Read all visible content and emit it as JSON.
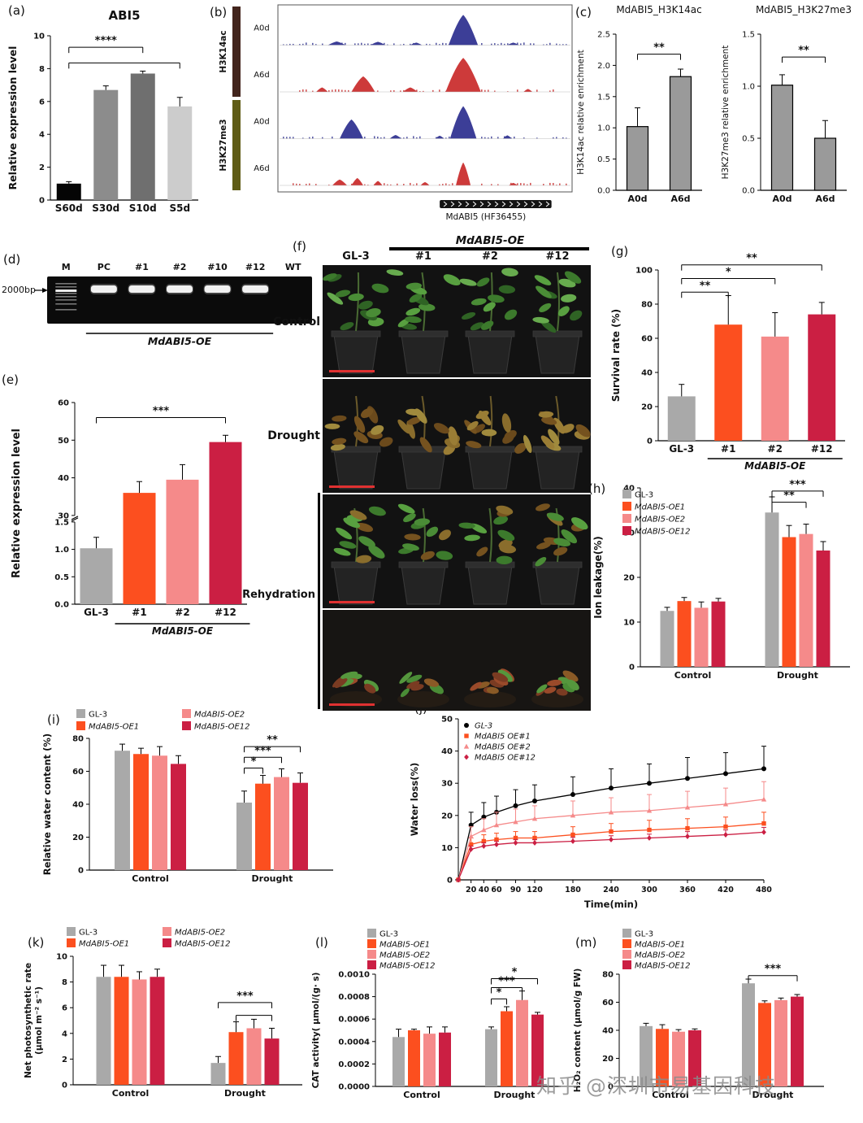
{
  "panel_labels": {
    "a": "(a)",
    "b": "(b)",
    "c": "(c)",
    "d": "(d)",
    "e": "(e)",
    "f": "(f)",
    "g": "(g)",
    "h": "(h)",
    "i": "(i)",
    "j": "(j)",
    "k": "(k)",
    "l": "(l)",
    "m": "(m)"
  },
  "watermark": {
    "text": "知乎 @深圳市易基因科技"
  },
  "panel_d": {
    "lanes": [
      "M",
      "PC",
      "#1",
      "#2",
      "#10",
      "#12",
      "WT"
    ],
    "marker_label": "2000bp",
    "construct_label": "MdABI5-OE"
  },
  "panel_f": {
    "header": "MdABI5-OE",
    "columns": [
      "GL-3",
      "#1",
      "#2",
      "#12"
    ],
    "row_labels": [
      "Control",
      "Drought",
      "Rehydration"
    ]
  },
  "chart_data": [
    {
      "id": "a",
      "type": "bar",
      "title": "ABI5",
      "ylabel": "Relative expression level",
      "ylim": [
        0,
        10
      ],
      "yticks": [
        0,
        2,
        4,
        6,
        8,
        10
      ],
      "categories": [
        "S60d",
        "S30d",
        "S10d",
        "S5d"
      ],
      "values": [
        1.0,
        6.7,
        7.7,
        5.7
      ],
      "errors": [
        0.12,
        0.25,
        0.15,
        0.55
      ],
      "bar_colors": [
        "#050505",
        "#8c8c8c",
        "#6f6f6f",
        "#cccccc"
      ],
      "sig": [
        {
          "g1": 0,
          "g2": 2,
          "y": 9.3,
          "label": "****"
        },
        {
          "g1": 0,
          "g2": 3,
          "y": 8.35,
          "label": ""
        }
      ]
    },
    {
      "id": "b",
      "type": "tracks",
      "groups": [
        {
          "name": "H3K14ac",
          "color": "#43251d",
          "tracks": [
            {
              "label": "A0d",
              "color": "#3c3e97",
              "peaks": [
                {
                  "c": 20,
                  "w": 6,
                  "h": 10
                },
                {
                  "c": 34,
                  "w": 5,
                  "h": 9
                },
                {
                  "c": 47,
                  "w": 4,
                  "h": 7
                },
                {
                  "c": 63,
                  "w": 10,
                  "h": 82
                },
                {
                  "c": 80,
                  "w": 4,
                  "h": 7
                }
              ]
            },
            {
              "label": "A6d",
              "color": "#cd3a3a",
              "peaks": [
                {
                  "c": 15,
                  "w": 4,
                  "h": 12
                },
                {
                  "c": 29,
                  "w": 8,
                  "h": 42
                },
                {
                  "c": 45,
                  "w": 5,
                  "h": 12
                },
                {
                  "c": 63,
                  "w": 12,
                  "h": 92
                },
                {
                  "c": 85,
                  "w": 3,
                  "h": 8
                }
              ]
            }
          ]
        },
        {
          "name": "H3K27me3",
          "color": "#5f5c16",
          "tracks": [
            {
              "label": "A0d",
              "color": "#3c3e97",
              "peaks": [
                {
                  "c": 25,
                  "w": 8,
                  "h": 52
                },
                {
                  "c": 40,
                  "w": 4,
                  "h": 10
                },
                {
                  "c": 55,
                  "w": 3,
                  "h": 8
                },
                {
                  "c": 63,
                  "w": 9,
                  "h": 88
                },
                {
                  "c": 78,
                  "w": 3,
                  "h": 9
                }
              ]
            },
            {
              "label": "A6d",
              "color": "#cd3a3a",
              "peaks": [
                {
                  "c": 21,
                  "w": 5,
                  "h": 16
                },
                {
                  "c": 27,
                  "w": 4,
                  "h": 20
                },
                {
                  "c": 34,
                  "w": 3,
                  "h": 12
                },
                {
                  "c": 50,
                  "w": 3,
                  "h": 9
                },
                {
                  "c": 63,
                  "w": 5,
                  "h": 62
                },
                {
                  "c": 80,
                  "w": 3,
                  "h": 7
                }
              ]
            }
          ]
        }
      ],
      "gene": {
        "label": "MdABI5 (HF36455)",
        "start": 55,
        "end": 93
      }
    },
    {
      "id": "c1",
      "type": "bar",
      "title": "MdABI5_H3K14ac",
      "ylabel": "H3K14ac relative enrichment",
      "ylim": [
        0,
        2.5
      ],
      "yticks": [
        0,
        0.5,
        1,
        1.5,
        2,
        2.5
      ],
      "ytick_decimals": 1,
      "categories": [
        "A0d",
        "A6d"
      ],
      "values": [
        1.02,
        1.82
      ],
      "errors": [
        0.3,
        0.12
      ],
      "bar_colors": [
        "#9a9a9a",
        "#9a9a9a"
      ],
      "bar_stroke": "#000",
      "sig": [
        {
          "g1": 0,
          "g2": 1,
          "y": 2.18,
          "label": "**"
        }
      ]
    },
    {
      "id": "c2",
      "type": "bar",
      "title": "MdABI5_H3K27me3",
      "ylabel": "H3K27me3 relative enrichment",
      "ylim": [
        0,
        1.5
      ],
      "yticks": [
        0,
        0.5,
        1,
        1.5
      ],
      "ytick_decimals": 1,
      "categories": [
        "A0d",
        "A6d"
      ],
      "values": [
        1.01,
        0.5
      ],
      "errors": [
        0.1,
        0.17
      ],
      "bar_colors": [
        "#9a9a9a",
        "#9a9a9a"
      ],
      "bar_stroke": "#000",
      "sig": [
        {
          "g1": 0,
          "g2": 1,
          "y": 1.28,
          "label": "**"
        }
      ]
    },
    {
      "id": "e",
      "type": "bar-broken",
      "ylabel": "Relative expression level",
      "categories": [
        "GL-3",
        "#1",
        "#2",
        "#12"
      ],
      "values": [
        1.02,
        36,
        39.5,
        49.5
      ],
      "errors": [
        0.2,
        3,
        4,
        1.8
      ],
      "bar_colors": [
        "#a9a9a9",
        "#fc4f1f",
        "#f58a8a",
        "#cb1f43"
      ],
      "lower": {
        "lim": [
          0,
          1.5
        ],
        "ticks": [
          0,
          0.5,
          1,
          1.5
        ],
        "decimals": 1
      },
      "upper": {
        "lim": [
          30,
          60
        ],
        "ticks": [
          30,
          40,
          50,
          60
        ],
        "decimals": 0
      },
      "sig": [
        {
          "g1": 0,
          "g2": 3,
          "y": 56,
          "label": "***"
        }
      ],
      "sublabel": {
        "from": 1,
        "to": 3,
        "label": "MdABI5-OE"
      }
    },
    {
      "id": "g",
      "type": "bar",
      "ylabel": "Survival rate (%)",
      "ylim": [
        0,
        100
      ],
      "yticks": [
        0,
        20,
        40,
        60,
        80,
        100
      ],
      "categories": [
        "GL-3",
        "#1",
        "#2",
        "#12"
      ],
      "values": [
        26,
        68,
        61,
        74
      ],
      "errors": [
        7,
        17,
        14,
        7
      ],
      "bar_colors": [
        "#a9a9a9",
        "#fc4f1f",
        "#f58a8a",
        "#cb1f43"
      ],
      "sig": [
        {
          "g1": 0,
          "g2": 1,
          "y": 87,
          "label": "**"
        },
        {
          "g1": 0,
          "g2": 2,
          "y": 95,
          "label": "*"
        },
        {
          "g1": 0,
          "g2": 3,
          "y": 103,
          "label": "**"
        }
      ],
      "sublabel": {
        "from": 1,
        "to": 3,
        "label": "MdABI5-OE"
      }
    },
    {
      "id": "h",
      "type": "grouped-bar",
      "ylabel": "Ion leakage(%)",
      "ylim": [
        0,
        40
      ],
      "yticks": [
        0,
        10,
        20,
        30,
        40
      ],
      "categories": [
        "Control",
        "Drought"
      ],
      "series": [
        {
          "name": "GL-3",
          "color": "#a9a9a9",
          "italic": false,
          "values": [
            12.5,
            34.5
          ],
          "errors": [
            0.8,
            3.5
          ]
        },
        {
          "name": "MdABI5-OE1",
          "color": "#fc4f1f",
          "italic": true,
          "values": [
            14.7,
            29
          ],
          "errors": [
            0.8,
            2.6
          ]
        },
        {
          "name": "MdABI5-OE2",
          "color": "#f58a8a",
          "italic": true,
          "values": [
            13.2,
            29.7
          ],
          "errors": [
            1.3,
            2.2
          ]
        },
        {
          "name": "MdABI5-OE12",
          "color": "#cb1f43",
          "italic": true,
          "values": [
            14.6,
            26
          ],
          "errors": [
            0.7,
            2.0
          ]
        }
      ],
      "sig": [
        {
          "g1": 1,
          "s1": 0,
          "g2": 1,
          "s2": 3,
          "y": 39.3,
          "label": "***"
        },
        {
          "g1": 1,
          "s1": 0,
          "g2": 1,
          "s2": 2,
          "y": 36.8,
          "label": "**"
        }
      ]
    },
    {
      "id": "i",
      "type": "grouped-bar",
      "ylabel": "Relative water content (%)",
      "ylim": [
        0,
        80
      ],
      "yticks": [
        0,
        20,
        40,
        60,
        80
      ],
      "categories": [
        "Control",
        "Drought"
      ],
      "series": [
        {
          "name": "GL-3",
          "color": "#a9a9a9",
          "italic": false,
          "values": [
            72.5,
            41
          ],
          "errors": [
            4,
            7
          ]
        },
        {
          "name": "MdABI5-OE1",
          "color": "#fc4f1f",
          "italic": true,
          "values": [
            70.5,
            52.5
          ],
          "errors": [
            3.5,
            5
          ]
        },
        {
          "name": "MdABI5-OE2",
          "color": "#f58a8a",
          "italic": true,
          "values": [
            69.5,
            56.5
          ],
          "errors": [
            5.5,
            5
          ]
        },
        {
          "name": "MdABI5-OE12",
          "color": "#cb1f43",
          "italic": true,
          "values": [
            64.5,
            53
          ],
          "errors": [
            5,
            6
          ]
        }
      ],
      "sig": [
        {
          "g1": 1,
          "s1": 0,
          "g2": 1,
          "s2": 1,
          "y": 62,
          "label": "*"
        },
        {
          "g1": 1,
          "s1": 0,
          "g2": 1,
          "s2": 2,
          "y": 68.5,
          "label": "***"
        },
        {
          "g1": 1,
          "s1": 0,
          "g2": 1,
          "s2": 3,
          "y": 75,
          "label": "**"
        }
      ]
    },
    {
      "id": "j",
      "type": "line",
      "ylabel": "Water loss(%)",
      "xlabel": "Time(min)",
      "ylim": [
        0,
        50
      ],
      "yticks": [
        0,
        10,
        20,
        30,
        40,
        50
      ],
      "x": [
        0,
        20,
        40,
        60,
        90,
        120,
        180,
        240,
        300,
        360,
        420,
        480
      ],
      "xtick_labels": [
        "20",
        "40",
        "60",
        "90",
        "120",
        "180",
        "240",
        "300",
        "360",
        "420",
        "480"
      ],
      "series": [
        {
          "name": "GL-3",
          "color": "#000000",
          "marker": "circle",
          "values": [
            0,
            17,
            19.5,
            21,
            23,
            24.5,
            26.5,
            28.5,
            30,
            31.5,
            33,
            34.5
          ],
          "errors": [
            0,
            4,
            4.5,
            5,
            5,
            5,
            5.5,
            6,
            6,
            6.5,
            6.5,
            7
          ]
        },
        {
          "name": "MdABI5 OE#1",
          "color": "#fc4f1f",
          "marker": "square",
          "values": [
            0,
            11,
            12,
            12.5,
            13,
            13,
            14,
            15,
            15.5,
            16,
            16.5,
            17.5
          ],
          "errors": [
            0,
            2,
            2,
            2,
            2,
            2,
            2.5,
            2.5,
            3,
            3,
            3,
            3.5
          ]
        },
        {
          "name": "MdABI5 OE#2",
          "color": "#f58a8a",
          "marker": "triangle",
          "values": [
            0,
            13.5,
            15.5,
            17,
            18,
            19,
            20,
            21,
            21.5,
            22.5,
            23.5,
            25
          ],
          "errors": [
            0,
            3,
            3.5,
            4,
            4,
            4,
            4.5,
            4.5,
            5,
            5,
            5,
            5.5
          ]
        },
        {
          "name": "MdABI5 OE#12",
          "color": "#cb1f43",
          "marker": "diamond",
          "values": [
            0,
            9.5,
            10.5,
            11,
            11.5,
            11.5,
            12,
            12.5,
            13,
            13.5,
            14,
            14.8
          ],
          "errors": [
            0,
            1,
            1,
            1,
            1,
            1,
            1.2,
            1.2,
            1.2,
            1.5,
            1.5,
            1.5
          ]
        }
      ]
    },
    {
      "id": "k",
      "type": "grouped-bar",
      "ylabel_lines": [
        "Net photosynthetic rate",
        "(μmol m⁻² s⁻¹)"
      ],
      "ylim": [
        0,
        10
      ],
      "yticks": [
        0,
        2,
        4,
        6,
        8,
        10
      ],
      "categories": [
        "Control",
        "Drought"
      ],
      "series": [
        {
          "name": "GL-3",
          "color": "#a9a9a9",
          "italic": false,
          "values": [
            8.4,
            1.7
          ],
          "errors": [
            0.9,
            0.5
          ]
        },
        {
          "name": "MdABI5-OE1",
          "color": "#fc4f1f",
          "italic": true,
          "values": [
            8.4,
            4.1
          ],
          "errors": [
            0.9,
            0.8
          ]
        },
        {
          "name": "MdABI5-OE2",
          "color": "#f58a8a",
          "italic": true,
          "values": [
            8.2,
            4.4
          ],
          "errors": [
            0.6,
            0.7
          ]
        },
        {
          "name": "MdABI5-OE12",
          "color": "#cb1f43",
          "italic": true,
          "values": [
            8.4,
            3.6
          ],
          "errors": [
            0.6,
            0.8
          ]
        }
      ],
      "sig": [
        {
          "g1": 1,
          "s1": 0,
          "g2": 1,
          "s2": 3,
          "y": 6.4,
          "label": "***"
        },
        {
          "g1": 1,
          "s1": 1,
          "g2": 1,
          "s2": 3,
          "y": 5.4,
          "label": ""
        }
      ]
    },
    {
      "id": "l",
      "type": "grouped-bar",
      "ylabel": "CAT activity( μmol/(g· s)",
      "ylim": [
        0,
        0.001
      ],
      "yticks": [
        0,
        0.0002,
        0.0004,
        0.0006,
        0.0008,
        0.001
      ],
      "ytick_decimals": 4,
      "categories": [
        "Control",
        "Drought"
      ],
      "series": [
        {
          "name": "GL-3",
          "color": "#a9a9a9",
          "italic": false,
          "values": [
            0.00044,
            0.00051
          ],
          "errors": [
            7e-05,
            2e-05
          ]
        },
        {
          "name": "MdABI5-OE1",
          "color": "#fc4f1f",
          "italic": true,
          "values": [
            0.0005,
            0.00067
          ],
          "errors": [
            1e-05,
            4e-05
          ]
        },
        {
          "name": "MdABI5-OE2",
          "color": "#f58a8a",
          "italic": true,
          "values": [
            0.00047,
            0.00077
          ],
          "errors": [
            6e-05,
            8e-05
          ]
        },
        {
          "name": "MdABI5-OE12",
          "color": "#cb1f43",
          "italic": true,
          "values": [
            0.00048,
            0.00064
          ],
          "errors": [
            5e-05,
            2e-05
          ]
        }
      ],
      "sig": [
        {
          "g1": 1,
          "s1": 0,
          "g2": 1,
          "s2": 1,
          "y": 0.00078,
          "label": "*"
        },
        {
          "g1": 1,
          "s1": 0,
          "g2": 1,
          "s2": 2,
          "y": 0.00088,
          "label": "***"
        },
        {
          "g1": 1,
          "s1": 0,
          "g2": 1,
          "s2": 3,
          "y": 0.00096,
          "label": "*"
        }
      ]
    },
    {
      "id": "m",
      "type": "grouped-bar",
      "ylabel": "H₂O₂ content (μmol/g FW)",
      "ylim": [
        0,
        80
      ],
      "yticks": [
        0,
        20,
        40,
        60,
        80
      ],
      "categories": [
        "Control",
        "Drought"
      ],
      "series": [
        {
          "name": "GL-3",
          "color": "#a9a9a9",
          "italic": false,
          "values": [
            43,
            73.5
          ],
          "errors": [
            2,
            3
          ]
        },
        {
          "name": "MdABI5-OE1",
          "color": "#fc4f1f",
          "italic": true,
          "values": [
            41,
            59.5
          ],
          "errors": [
            3,
            1.5
          ]
        },
        {
          "name": "MdABI5-OE2",
          "color": "#f58a8a",
          "italic": true,
          "values": [
            39,
            61.5
          ],
          "errors": [
            1.5,
            1.5
          ]
        },
        {
          "name": "MdABI5-OE12",
          "color": "#cb1f43",
          "italic": true,
          "values": [
            40,
            64
          ],
          "errors": [
            1,
            1.5
          ]
        }
      ],
      "sig": [
        {
          "g1": 1,
          "s1": 0,
          "g2": 1,
          "s2": 3,
          "y": 79,
          "label": "***"
        }
      ]
    }
  ]
}
